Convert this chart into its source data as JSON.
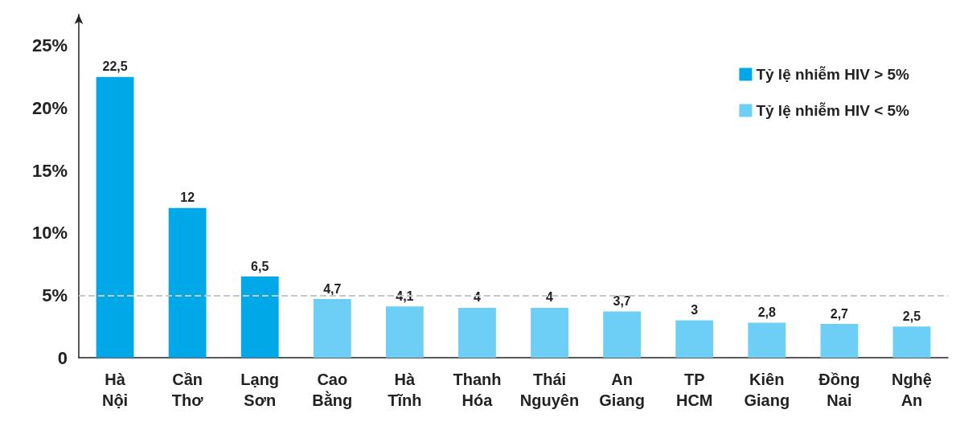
{
  "chart_data": {
    "type": "bar",
    "categories": [
      "Hà\nNội",
      "Cần\nThơ",
      "Lạng\nSơn",
      "Cao\nBằng",
      "Hà\nTĩnh",
      "Thanh\nHóa",
      "Thái\nNguyên",
      "An\nGiang",
      "TP\nHCM",
      "Kiên\nGiang",
      "Đồng\nNai",
      "Nghệ\nAn"
    ],
    "series": [
      {
        "name": "Tỷ lệ nhiễm HIV > 5%",
        "color": "#00a8e8",
        "values": [
          22.5,
          12,
          6.5,
          null,
          null,
          null,
          null,
          null,
          null,
          null,
          null,
          null
        ],
        "value_labels": [
          "22,5",
          "12",
          "6,5",
          null,
          null,
          null,
          null,
          null,
          null,
          null,
          null,
          null
        ]
      },
      {
        "name": "Tỷ lệ nhiễm HIV < 5%",
        "color": "#6dcff6",
        "values": [
          null,
          null,
          null,
          4.7,
          4.1,
          4,
          4,
          3.7,
          3,
          2.8,
          2.7,
          2.5
        ],
        "value_labels": [
          null,
          null,
          null,
          "4,7",
          "4,1",
          "4",
          "4",
          "3,7",
          "3",
          "2,8",
          "2,7",
          "2,5"
        ]
      }
    ],
    "ylim": [
      0,
      27.5
    ],
    "yticks": [
      0,
      {
        "value": 5,
        "label": "5%"
      },
      {
        "value": 10,
        "label": "10%"
      },
      {
        "value": 15,
        "label": "15%"
      },
      {
        "value": 20,
        "label": "20%"
      },
      {
        "value": 25,
        "label": "25%"
      }
    ],
    "ref_lines": [
      {
        "axis": "y",
        "value": 5,
        "color": "#c8c8c8",
        "line_style": "dashed"
      }
    ],
    "legend": "top right",
    "grid": false
  }
}
